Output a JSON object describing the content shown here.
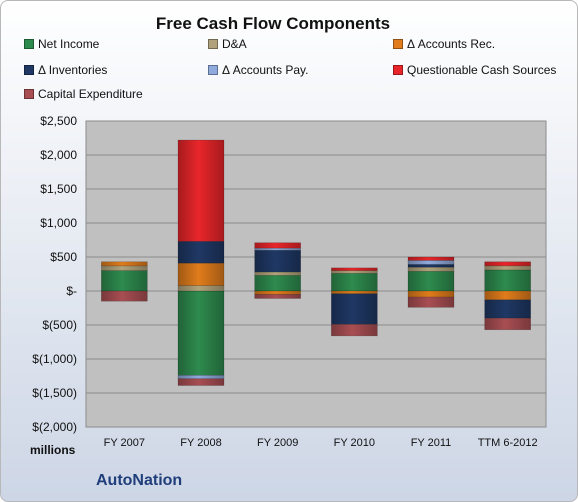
{
  "chart_data": {
    "type": "bar",
    "stacked": true,
    "title": "Free Cash Flow Components",
    "ylabel": "millions",
    "ylim": [
      -2000,
      2500
    ],
    "grid": true,
    "legend_position": "top",
    "categories": [
      "FY 2007",
      "FY 2008",
      "FY 2009",
      "FY 2010",
      "FY 2011",
      "TTM 6-2012"
    ],
    "ytick_values": [
      -2000,
      -1500,
      -1000,
      -500,
      0,
      500,
      1000,
      1500,
      2000,
      2500
    ],
    "ytick_labels": [
      "$(2,000)",
      "$(1,500)",
      "$(1,000)",
      "$(500)",
      "$-",
      "$500",
      "$1,000",
      "$1,500",
      "$2,000",
      "$2,500"
    ],
    "series": [
      {
        "name": "Net Income",
        "color": "#2e8b4e",
        "values": [
          300,
          -1240,
          230,
          260,
          290,
          310
        ]
      },
      {
        "name": "D&A",
        "color": "#b0a27a",
        "values": [
          70,
          80,
          50,
          40,
          60,
          60
        ]
      },
      {
        "name": "Δ Accounts Rec.",
        "color": "#e07c1c",
        "values": [
          60,
          330,
          -50,
          -40,
          -90,
          -130
        ]
      },
      {
        "name": "Δ Inventories",
        "color": "#1f3864",
        "values": [
          0,
          320,
          320,
          -450,
          40,
          -270
        ]
      },
      {
        "name": "Δ Accounts Pay.",
        "color": "#8faadc",
        "values": [
          0,
          -50,
          30,
          0,
          60,
          0
        ]
      },
      {
        "name": "Questionable Cash Sources",
        "color": "#e8262a",
        "values": [
          0,
          1490,
          80,
          40,
          50,
          60
        ]
      },
      {
        "name": "Capital Expenditure",
        "color": "#a84e52",
        "values": [
          -150,
          -100,
          -60,
          -170,
          -150,
          -170
        ]
      }
    ]
  },
  "footer": {
    "unit_label": "millions",
    "brand": "AutoNation"
  }
}
